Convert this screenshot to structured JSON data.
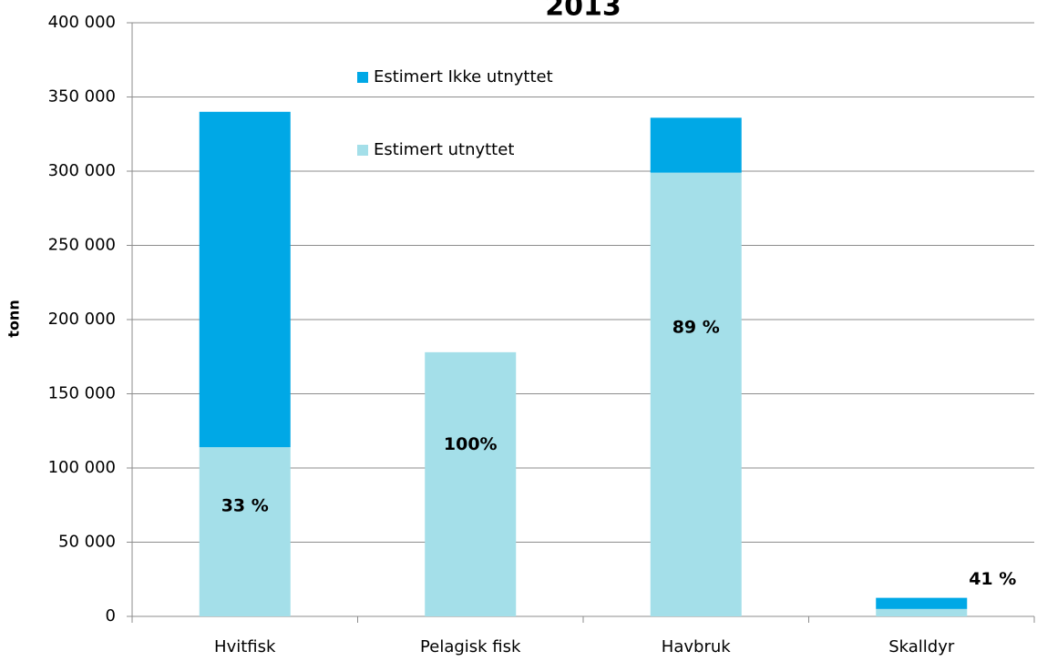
{
  "chart_data": {
    "type": "stacked_bar",
    "title": "2013",
    "y_label": "tonn",
    "categories": [
      "Hvitfisk",
      "Pelagisk fisk",
      "Havbruk",
      "Skalldyr"
    ],
    "series": [
      {
        "name": "Estimert utnyttet",
        "color": "#a4dfe9",
        "values": [
          114000,
          178000,
          299000,
          5000
        ]
      },
      {
        "name": "Estimert Ikke utnyttet",
        "color": "#00a8e6",
        "values": [
          226000,
          0,
          37000,
          7500
        ]
      }
    ],
    "annotations": [
      "33 %",
      "100%",
      "89 %",
      "41 %"
    ],
    "ylim": [
      0,
      400000
    ],
    "yticks": [
      0,
      {
        "value": 50000,
        "label": "50 000"
      },
      {
        "value": 100000,
        "label": "100 000"
      },
      {
        "value": 150000,
        "label": "150 000"
      },
      {
        "value": 200000,
        "label": "200 000"
      },
      {
        "value": 250000,
        "label": "250 000"
      },
      {
        "value": 300000,
        "label": "300 000"
      },
      {
        "value": 350000,
        "label": "350 000"
      },
      {
        "value": 400000,
        "label": "400 000"
      }
    ],
    "grid": true
  }
}
